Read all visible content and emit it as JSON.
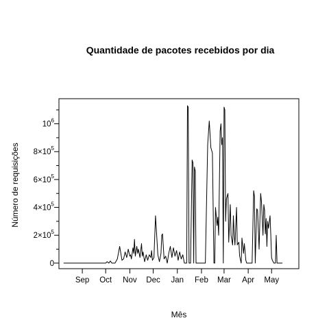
{
  "chart_data": {
    "type": "line",
    "title": "Quantidade de pacotes recebidos por dia",
    "xlabel": "Mês",
    "ylabel": "Número de requisições",
    "x_axis": {
      "type": "date",
      "range": [
        "2015-08-02",
        "2016-06-05"
      ],
      "tick_labels": [
        {
          "date": "2015-09-01",
          "label": "Sep"
        },
        {
          "date": "2015-10-01",
          "label": "Oct"
        },
        {
          "date": "2015-11-01",
          "label": "Nov"
        },
        {
          "date": "2015-12-01",
          "label": "Dec"
        },
        {
          "date": "2016-01-01",
          "label": "Jan"
        },
        {
          "date": "2016-02-01",
          "label": "Feb"
        },
        {
          "date": "2016-03-01",
          "label": "Mar"
        },
        {
          "date": "2016-04-01",
          "label": "Apr"
        },
        {
          "date": "2016-05-01",
          "label": "May"
        }
      ]
    },
    "y_axis": {
      "range": [
        -40000,
        1180000
      ],
      "major_ticks": [
        {
          "value": 0,
          "mantissa": "0",
          "exponent": ""
        },
        {
          "value": 200000,
          "mantissa": "2×10",
          "exponent": "5"
        },
        {
          "value": 400000,
          "mantissa": "4×10",
          "exponent": "5"
        },
        {
          "value": 600000,
          "mantissa": "6×10",
          "exponent": "5"
        },
        {
          "value": 800000,
          "mantissa": "8×10",
          "exponent": "5"
        },
        {
          "value": 1000000,
          "mantissa": "10",
          "exponent": "6"
        }
      ],
      "minor_ticks": [
        100000,
        300000,
        500000,
        700000,
        900000,
        1100000
      ]
    },
    "grid": false,
    "legend": "none",
    "line_color": "#000000",
    "series": [
      {
        "points": [
          [
            "2015-08-08",
            0
          ],
          [
            "2015-10-01",
            0
          ],
          [
            "2015-10-03",
            10000
          ],
          [
            "2015-10-05",
            0
          ],
          [
            "2015-10-07",
            15000
          ],
          [
            "2015-10-09",
            0
          ],
          [
            "2015-10-13",
            0
          ],
          [
            "2015-10-16",
            30000
          ],
          [
            "2015-10-19",
            120000
          ],
          [
            "2015-10-22",
            20000
          ],
          [
            "2015-10-24",
            30000
          ],
          [
            "2015-10-26",
            80000
          ],
          [
            "2015-10-28",
            40000
          ],
          [
            "2015-10-30",
            100000
          ],
          [
            "2015-11-01",
            50000
          ],
          [
            "2015-11-02",
            60000
          ],
          [
            "2015-11-03",
            30000
          ],
          [
            "2015-11-05",
            110000
          ],
          [
            "2015-11-06",
            70000
          ],
          [
            "2015-11-07",
            170000
          ],
          [
            "2015-11-08",
            50000
          ],
          [
            "2015-11-10",
            120000
          ],
          [
            "2015-11-11",
            70000
          ],
          [
            "2015-11-12",
            100000
          ],
          [
            "2015-11-14",
            40000
          ],
          [
            "2015-11-16",
            140000
          ],
          [
            "2015-11-17",
            50000
          ],
          [
            "2015-11-18",
            80000
          ],
          [
            "2015-11-20",
            10000
          ],
          [
            "2015-11-22",
            60000
          ],
          [
            "2015-11-24",
            20000
          ],
          [
            "2015-11-26",
            60000
          ],
          [
            "2015-11-28",
            40000
          ],
          [
            "2015-11-29",
            90000
          ],
          [
            "2015-11-30",
            20000
          ],
          [
            "2015-12-02",
            40000
          ],
          [
            "2015-12-04",
            340000
          ],
          [
            "2015-12-05",
            250000
          ],
          [
            "2015-12-07",
            60000
          ],
          [
            "2015-12-09",
            10000
          ],
          [
            "2015-12-11",
            70000
          ],
          [
            "2015-12-12",
            200000
          ],
          [
            "2015-12-13",
            210000
          ],
          [
            "2015-12-15",
            30000
          ],
          [
            "2015-12-17",
            50000
          ],
          [
            "2015-12-19",
            0
          ],
          [
            "2015-12-21",
            70000
          ],
          [
            "2015-12-23",
            120000
          ],
          [
            "2015-12-25",
            40000
          ],
          [
            "2015-12-27",
            110000
          ],
          [
            "2015-12-29",
            50000
          ],
          [
            "2015-12-31",
            90000
          ],
          [
            "2016-01-02",
            20000
          ],
          [
            "2016-01-04",
            80000
          ],
          [
            "2016-01-06",
            30000
          ],
          [
            "2016-01-08",
            60000
          ],
          [
            "2016-01-10",
            0
          ],
          [
            "2016-01-13",
            0
          ],
          [
            "2016-01-14",
            1130000
          ],
          [
            "2016-01-15",
            1120000
          ],
          [
            "2016-01-16",
            0
          ],
          [
            "2016-01-18",
            0
          ],
          [
            "2016-01-20",
            740000
          ],
          [
            "2016-01-21",
            720000
          ],
          [
            "2016-01-22",
            0
          ],
          [
            "2016-01-23",
            690000
          ],
          [
            "2016-01-24",
            660000
          ],
          [
            "2016-01-25",
            0
          ],
          [
            "2016-02-06",
            0
          ],
          [
            "2016-02-09",
            850000
          ],
          [
            "2016-02-11",
            1020000
          ],
          [
            "2016-02-13",
            830000
          ],
          [
            "2016-02-15",
            790000
          ],
          [
            "2016-02-17",
            0
          ],
          [
            "2016-02-18",
            0
          ],
          [
            "2016-02-19",
            400000
          ],
          [
            "2016-02-21",
            270000
          ],
          [
            "2016-02-22",
            330000
          ],
          [
            "2016-02-23",
            200000
          ],
          [
            "2016-02-25",
            950000
          ],
          [
            "2016-02-26",
            1000000
          ],
          [
            "2016-02-27",
            850000
          ],
          [
            "2016-02-28",
            900000
          ],
          [
            "2016-02-29",
            0
          ],
          [
            "2016-03-01",
            1120000
          ],
          [
            "2016-03-02",
            1100000
          ],
          [
            "2016-03-03",
            300000
          ],
          [
            "2016-03-04",
            460000
          ],
          [
            "2016-03-06",
            500000
          ],
          [
            "2016-03-07",
            150000
          ],
          [
            "2016-03-09",
            420000
          ],
          [
            "2016-03-10",
            200000
          ],
          [
            "2016-03-12",
            130000
          ],
          [
            "2016-03-13",
            340000
          ],
          [
            "2016-03-14",
            200000
          ],
          [
            "2016-03-15",
            130000
          ],
          [
            "2016-03-17",
            400000
          ],
          [
            "2016-03-18",
            130000
          ],
          [
            "2016-03-20",
            150000
          ],
          [
            "2016-03-21",
            50000
          ],
          [
            "2016-03-23",
            0
          ],
          [
            "2016-03-24",
            180000
          ],
          [
            "2016-03-26",
            70000
          ],
          [
            "2016-03-27",
            140000
          ],
          [
            "2016-03-29",
            20000
          ],
          [
            "2016-03-30",
            0
          ],
          [
            "2016-04-06",
            0
          ],
          [
            "2016-04-08",
            520000
          ],
          [
            "2016-04-09",
            480000
          ],
          [
            "2016-04-10",
            0
          ],
          [
            "2016-04-12",
            390000
          ],
          [
            "2016-04-13",
            380000
          ],
          [
            "2016-04-15",
            100000
          ],
          [
            "2016-04-17",
            500000
          ],
          [
            "2016-04-18",
            440000
          ],
          [
            "2016-04-20",
            200000
          ],
          [
            "2016-04-21",
            420000
          ],
          [
            "2016-04-22",
            380000
          ],
          [
            "2016-04-23",
            210000
          ],
          [
            "2016-04-24",
            320000
          ],
          [
            "2016-04-25",
            120000
          ],
          [
            "2016-04-26",
            300000
          ],
          [
            "2016-04-27",
            250000
          ],
          [
            "2016-04-29",
            340000
          ],
          [
            "2016-04-30",
            200000
          ],
          [
            "2016-05-01",
            40000
          ],
          [
            "2016-05-02",
            20000
          ],
          [
            "2016-05-04",
            0
          ],
          [
            "2016-05-06",
            0
          ],
          [
            "2016-05-07",
            200000
          ],
          [
            "2016-05-08",
            0
          ],
          [
            "2016-05-11",
            0
          ],
          [
            "2016-05-15",
            0
          ]
        ]
      }
    ]
  }
}
